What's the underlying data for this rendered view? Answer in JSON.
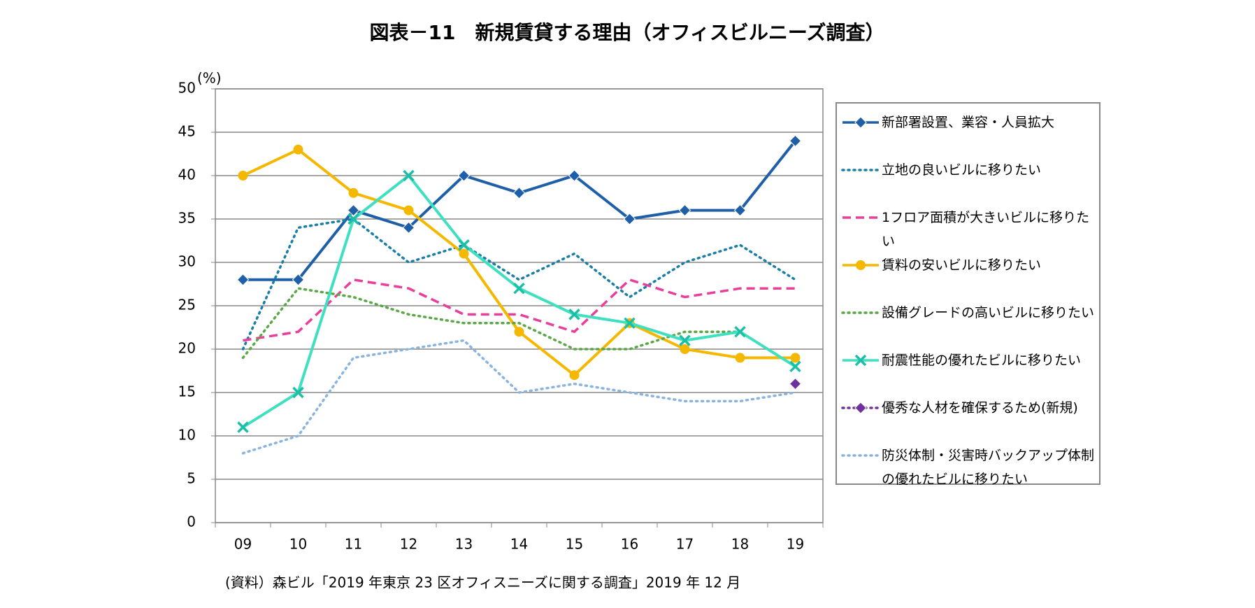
{
  "chart_data": {
    "type": "line",
    "title": "図表－11　新規賃貸する理由（オフィスビルニーズ調査）",
    "y_unit": "(%)",
    "source": "(資料）森ビル「2019 年東京 23 区オフィスニーズに関する調査」2019 年 12 月",
    "categories": [
      "09",
      "10",
      "11",
      "12",
      "13",
      "14",
      "15",
      "16",
      "17",
      "18",
      "19"
    ],
    "ylim": [
      0,
      50
    ],
    "yticks": [
      0,
      5,
      10,
      15,
      20,
      25,
      30,
      35,
      40,
      45,
      50
    ],
    "grid": true,
    "legend": "right",
    "series": [
      {
        "name": "新部署設置、業容・人員拡大",
        "color": "#1f5fa8",
        "line_style": "solid",
        "marker": "diamond",
        "values": [
          28,
          28,
          36,
          34,
          40,
          38,
          40,
          35,
          36,
          36,
          44
        ]
      },
      {
        "name": "立地の良いビルに移りたい",
        "color": "#1a7fa8",
        "line_style": "dotted",
        "marker": "none",
        "values": [
          20,
          34,
          35,
          30,
          32,
          28,
          31,
          26,
          30,
          32,
          28
        ]
      },
      {
        "name": "1フロア面積が大きいビルに移りたい",
        "color": "#e8409a",
        "line_style": "dashed",
        "marker": "none",
        "values": [
          21,
          22,
          28,
          27,
          24,
          24,
          22,
          28,
          26,
          27,
          27
        ]
      },
      {
        "name": "賃料の安いビルに移りたい",
        "color": "#f5b800",
        "line_style": "solid",
        "marker": "circle",
        "values": [
          40,
          43,
          38,
          36,
          31,
          22,
          17,
          23,
          20,
          19,
          19
        ]
      },
      {
        "name": "設備グレードの高いビルに移りたい",
        "color": "#5aa845",
        "line_style": "dotted",
        "marker": "none",
        "values": [
          19,
          27,
          26,
          24,
          23,
          23,
          20,
          20,
          22,
          22,
          18
        ]
      },
      {
        "name": "耐震性能の優れたビルに移りたい",
        "color": "#3ee0c0",
        "line_style": "solid",
        "marker": "cross",
        "values": [
          11,
          15,
          35,
          40,
          32,
          27,
          24,
          23,
          21,
          22,
          18
        ]
      },
      {
        "name": "優秀な人材を確保するため(新規)",
        "color": "#7030a0",
        "line_style": "dotted",
        "marker": "diamond",
        "values": [
          null,
          null,
          null,
          null,
          null,
          null,
          null,
          null,
          null,
          null,
          16
        ]
      },
      {
        "name": "防災体制・災害時バックアップ体制の優れたビルに移りたい",
        "color": "#8ab4e0",
        "line_style": "dotted",
        "marker": "none",
        "values": [
          8,
          10,
          19,
          20,
          21,
          15,
          16,
          15,
          14,
          14,
          15
        ]
      }
    ]
  }
}
